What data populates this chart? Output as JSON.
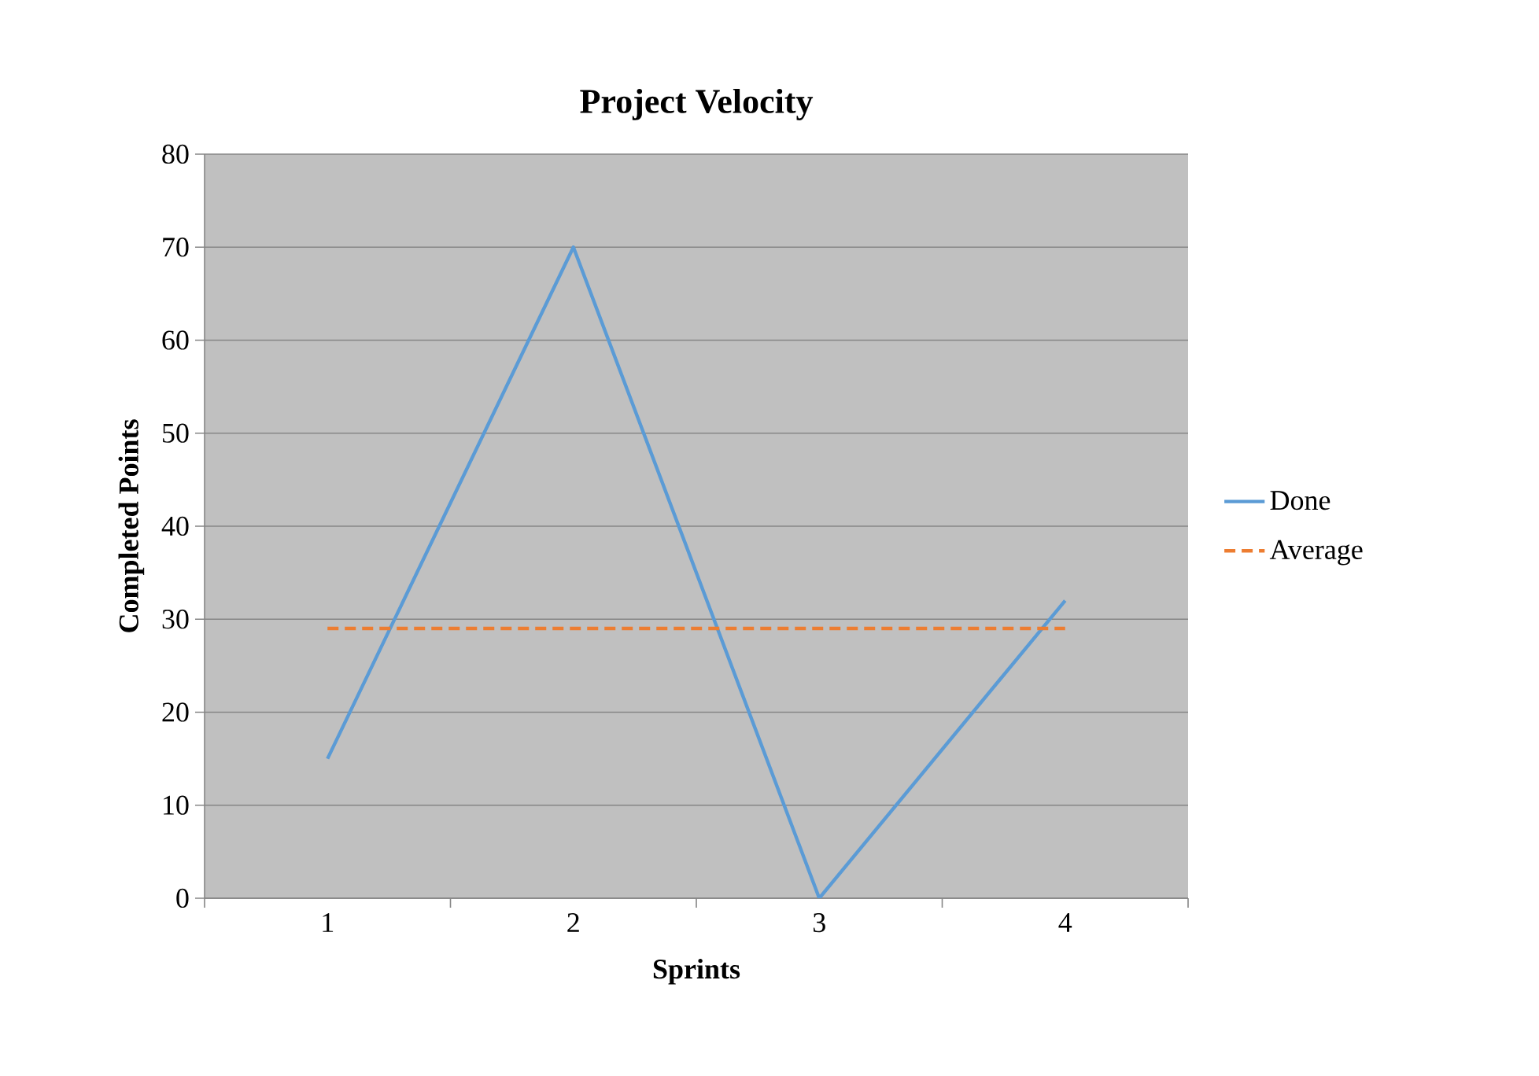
{
  "chart_data": {
    "type": "line",
    "title": "Project Velocity",
    "xlabel": "Sprints",
    "ylabel": "Completed Points",
    "categories": [
      "1",
      "2",
      "3",
      "4"
    ],
    "series": [
      {
        "name": "Done",
        "color": "#5b9bd5",
        "values": [
          15,
          70,
          0,
          32
        ],
        "line_style": "solid"
      },
      {
        "name": "Average",
        "color": "#ed7d31",
        "values": [
          29,
          29,
          29,
          29
        ],
        "line_style": "dashed"
      }
    ],
    "ylim": [
      0,
      80
    ],
    "yticks": [
      0,
      10,
      20,
      30,
      40,
      50,
      60,
      70,
      80
    ],
    "grid": "y",
    "legend": "right",
    "marker": "none"
  }
}
